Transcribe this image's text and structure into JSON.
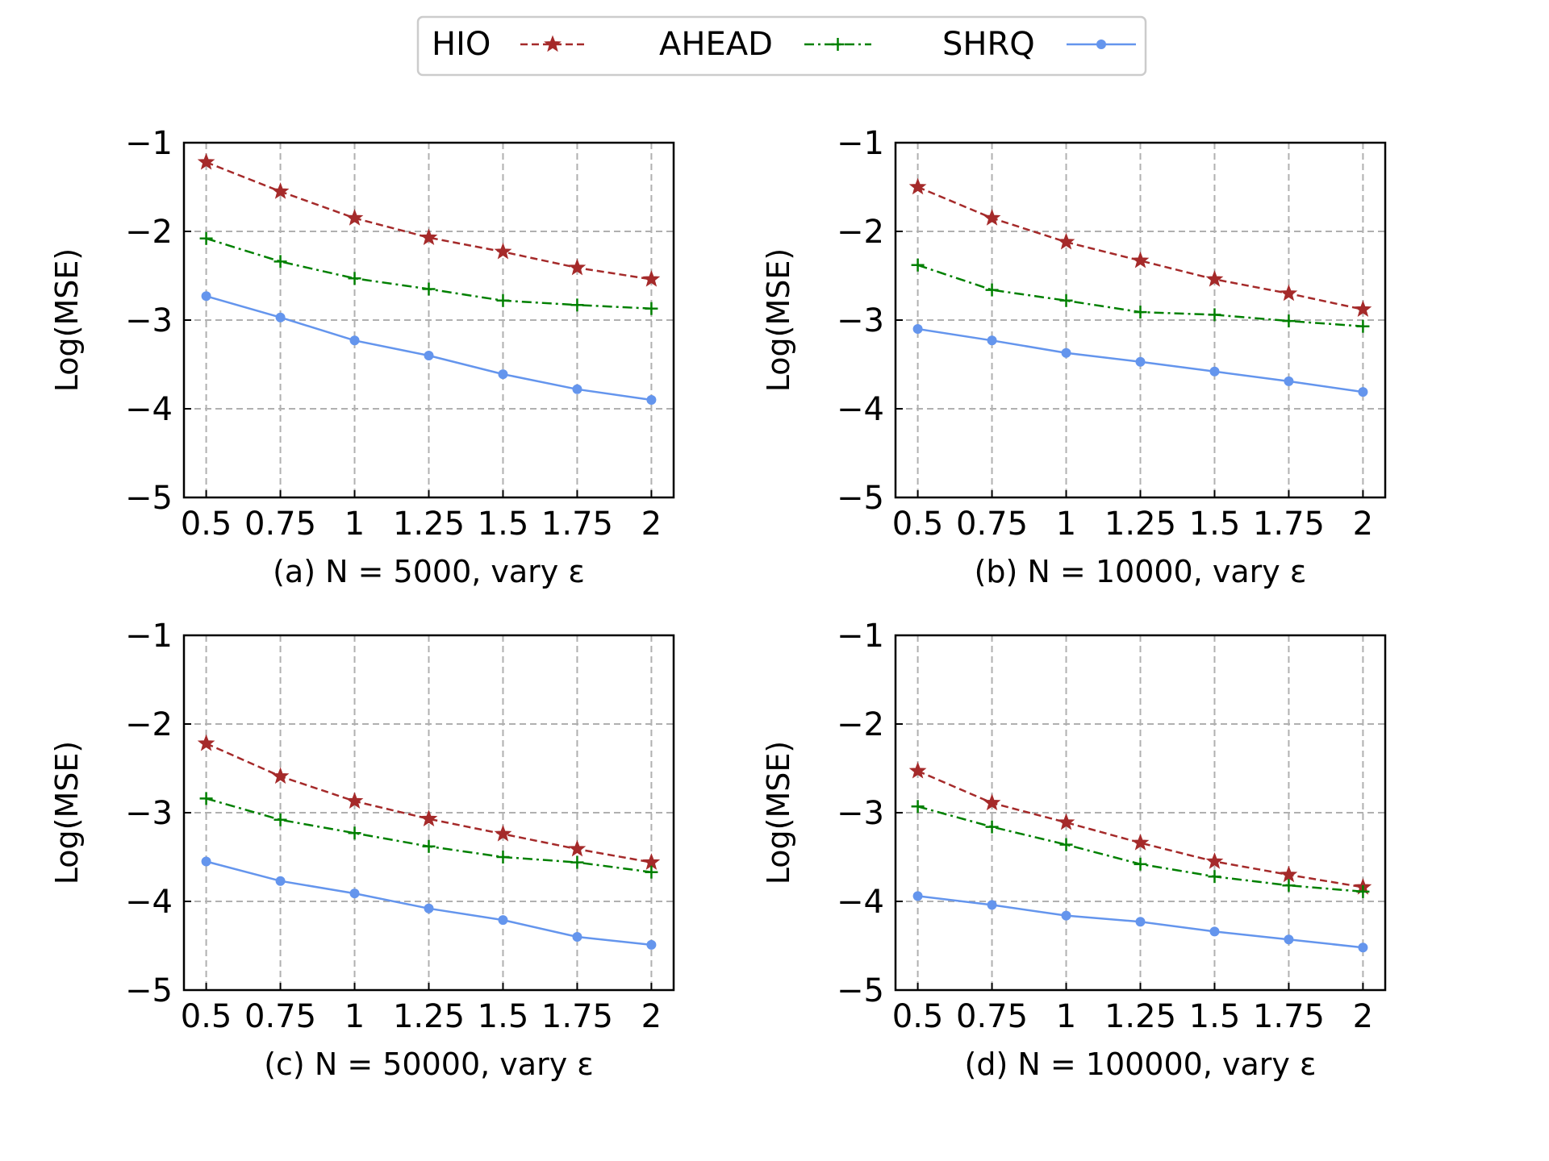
{
  "legend": {
    "entries": [
      {
        "name": "HIO",
        "color": "#a52a2a",
        "marker": "star",
        "dash": "dashed"
      },
      {
        "name": "AHEAD",
        "color": "#008000",
        "marker": "plus",
        "dash": "dashdot"
      },
      {
        "name": "SHRQ",
        "color": "#6495ed",
        "marker": "dot",
        "dash": "solid"
      }
    ]
  },
  "chart_data": [
    {
      "type": "line",
      "xlabel": "(a) N = 5000, vary ε",
      "ylabel": "Log(MSE)",
      "x": [
        0.5,
        0.75,
        1,
        1.25,
        1.5,
        1.75,
        2
      ],
      "xticklabels": [
        "0.5",
        "0.75",
        "1",
        "1.25",
        "1.5",
        "1.75",
        "2"
      ],
      "yticks": [
        -1,
        -2,
        -3,
        -4,
        -5
      ],
      "yticklabels": [
        "−1",
        "−2",
        "−3",
        "−4",
        "−5"
      ],
      "ylim": [
        -5,
        -1
      ],
      "grid": true,
      "series": [
        {
          "name": "HIO",
          "values": [
            -1.22,
            -1.55,
            -1.85,
            -2.07,
            -2.23,
            -2.41,
            -2.54
          ]
        },
        {
          "name": "AHEAD",
          "values": [
            -2.08,
            -2.34,
            -2.53,
            -2.65,
            -2.78,
            -2.83,
            -2.87
          ]
        },
        {
          "name": "SHRQ",
          "values": [
            -2.73,
            -2.97,
            -3.23,
            -3.4,
            -3.61,
            -3.78,
            -3.9
          ]
        }
      ]
    },
    {
      "type": "line",
      "xlabel": "(b) N = 10000, vary ε",
      "ylabel": "Log(MSE)",
      "x": [
        0.5,
        0.75,
        1,
        1.25,
        1.5,
        1.75,
        2
      ],
      "xticklabels": [
        "0.5",
        "0.75",
        "1",
        "1.25",
        "1.5",
        "1.75",
        "2"
      ],
      "yticks": [
        -1,
        -2,
        -3,
        -4,
        -5
      ],
      "yticklabels": [
        "−1",
        "−2",
        "−3",
        "−4",
        "−5"
      ],
      "ylim": [
        -5,
        -1
      ],
      "grid": true,
      "series": [
        {
          "name": "HIO",
          "values": [
            -1.5,
            -1.85,
            -2.12,
            -2.33,
            -2.54,
            -2.7,
            -2.88
          ]
        },
        {
          "name": "AHEAD",
          "values": [
            -2.38,
            -2.66,
            -2.78,
            -2.91,
            -2.94,
            -3.01,
            -3.07
          ]
        },
        {
          "name": "SHRQ",
          "values": [
            -3.1,
            -3.23,
            -3.37,
            -3.47,
            -3.58,
            -3.69,
            -3.81
          ]
        }
      ]
    },
    {
      "type": "line",
      "xlabel": "(c) N = 50000, vary ε",
      "ylabel": "Log(MSE)",
      "x": [
        0.5,
        0.75,
        1,
        1.25,
        1.5,
        1.75,
        2
      ],
      "xticklabels": [
        "0.5",
        "0.75",
        "1",
        "1.25",
        "1.5",
        "1.75",
        "2"
      ],
      "yticks": [
        -1,
        -2,
        -3,
        -4,
        -5
      ],
      "yticklabels": [
        "−1",
        "−2",
        "−3",
        "−4",
        "−5"
      ],
      "ylim": [
        -5,
        -1
      ],
      "grid": true,
      "series": [
        {
          "name": "HIO",
          "values": [
            -2.22,
            -2.59,
            -2.87,
            -3.07,
            -3.24,
            -3.41,
            -3.56
          ]
        },
        {
          "name": "AHEAD",
          "values": [
            -2.84,
            -3.08,
            -3.23,
            -3.38,
            -3.5,
            -3.56,
            -3.67
          ]
        },
        {
          "name": "SHRQ",
          "values": [
            -3.55,
            -3.77,
            -3.91,
            -4.08,
            -4.21,
            -4.4,
            -4.49
          ]
        }
      ]
    },
    {
      "type": "line",
      "xlabel": "(d) N = 100000, vary ε",
      "ylabel": "Log(MSE)",
      "x": [
        0.5,
        0.75,
        1,
        1.25,
        1.5,
        1.75,
        2
      ],
      "xticklabels": [
        "0.5",
        "0.75",
        "1",
        "1.25",
        "1.5",
        "1.75",
        "2"
      ],
      "yticks": [
        -1,
        -2,
        -3,
        -4,
        -5
      ],
      "yticklabels": [
        "−1",
        "−2",
        "−3",
        "−4",
        "−5"
      ],
      "ylim": [
        -5,
        -1
      ],
      "grid": true,
      "series": [
        {
          "name": "HIO",
          "values": [
            -2.53,
            -2.89,
            -3.11,
            -3.34,
            -3.55,
            -3.7,
            -3.84
          ]
        },
        {
          "name": "AHEAD",
          "values": [
            -2.93,
            -3.16,
            -3.36,
            -3.58,
            -3.72,
            -3.82,
            -3.89
          ]
        },
        {
          "name": "SHRQ",
          "values": [
            -3.94,
            -4.04,
            -4.16,
            -4.23,
            -4.34,
            -4.43,
            -4.52
          ]
        }
      ]
    }
  ]
}
